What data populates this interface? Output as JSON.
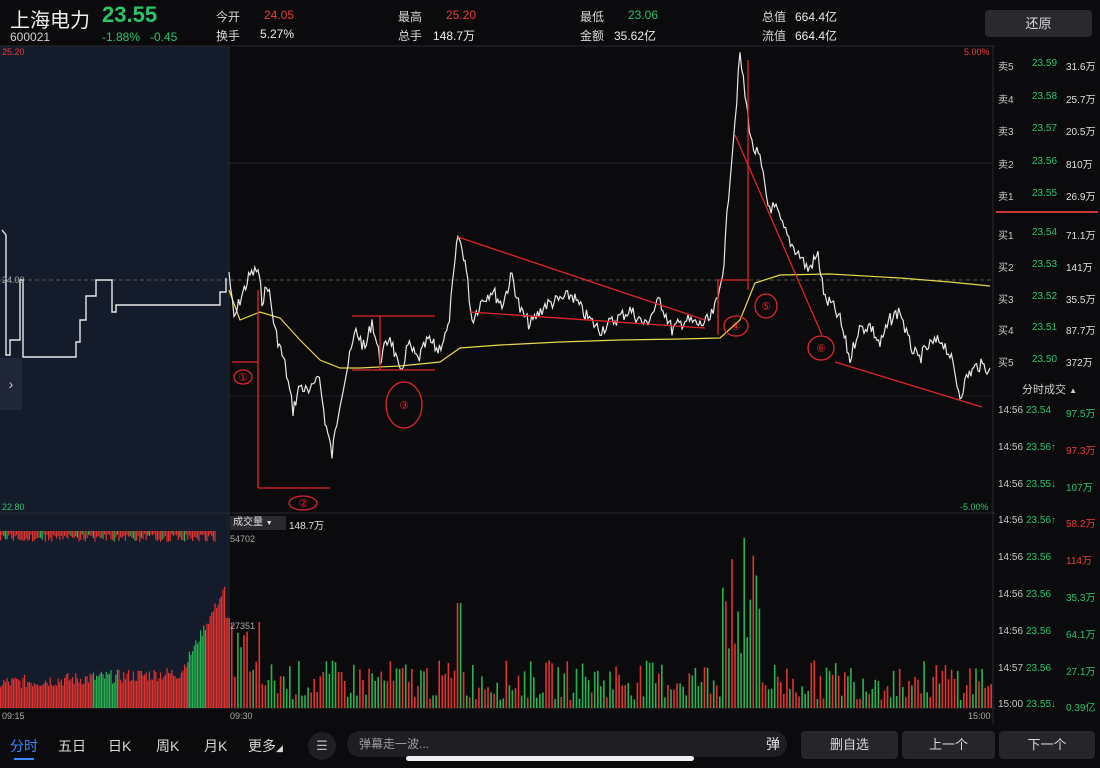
{
  "header": {
    "stock_name": "上海电力",
    "price": "23.55",
    "code": "600021",
    "change_pct": "-1.88%",
    "change_amt": "-0.45",
    "stats": [
      {
        "label": "今开",
        "value": "24.05",
        "color": "#f03c3c"
      },
      {
        "label": "换手",
        "value": "5.27%",
        "color": "#e0e0e0"
      },
      {
        "label": "最高",
        "value": "25.20",
        "color": "#f03c3c"
      },
      {
        "label": "总手",
        "value": "148.7万",
        "color": "#e0e0e0"
      },
      {
        "label": "最低",
        "value": "23.06",
        "color": "#2bc46a"
      },
      {
        "label": "金额",
        "value": "35.62亿",
        "color": "#e0e0e0"
      },
      {
        "label": "总值",
        "value": "664.4亿",
        "color": "#e0e0e0"
      },
      {
        "label": "流值",
        "value": "664.4亿",
        "color": "#e0e0e0"
      }
    ],
    "restore_label": "还原"
  },
  "chart": {
    "price_high": "25.20",
    "price_low": "22.80",
    "pct_high": "5.00%",
    "pct_low": "-5.00%",
    "ref_price": "24.00",
    "volume_label": "成交量",
    "volume_total": "148.7万",
    "volume_max": "54702",
    "volume_mid": "27351",
    "times": [
      "09:15",
      "09:30",
      "15:00"
    ],
    "annotations": [
      "①",
      "②",
      "③",
      "④",
      "⑤",
      "⑥"
    ]
  },
  "order_book": {
    "asks": [
      {
        "label": "卖5",
        "price": "23.59",
        "vol": "31.6万"
      },
      {
        "label": "卖4",
        "price": "23.58",
        "vol": "25.7万"
      },
      {
        "label": "卖3",
        "price": "23.57",
        "vol": "20.5万"
      },
      {
        "label": "卖2",
        "price": "23.56",
        "vol": "810万"
      },
      {
        "label": "卖1",
        "price": "23.55",
        "vol": "26.9万"
      }
    ],
    "bids": [
      {
        "label": "买1",
        "price": "23.54",
        "vol": "71.1万"
      },
      {
        "label": "买2",
        "price": "23.53",
        "vol": "141万"
      },
      {
        "label": "买3",
        "price": "23.52",
        "vol": "35.5万"
      },
      {
        "label": "买4",
        "price": "23.51",
        "vol": "87.7万"
      },
      {
        "label": "买5",
        "price": "23.50",
        "vol": "372万"
      }
    ],
    "ticks_title": "分时成交",
    "ticks": [
      {
        "time": "14:56",
        "price": "23.54",
        "vol": "97.5万",
        "vcolor": "#2bc46a"
      },
      {
        "time": "14:56",
        "price": "23.56↑",
        "vol": "97.3万",
        "vcolor": "#f03c3c"
      },
      {
        "time": "14:56",
        "price": "23.55↓",
        "vol": "107万",
        "vcolor": "#2bc46a"
      },
      {
        "time": "14:56",
        "price": "23.56↑",
        "vol": "58.2万",
        "vcolor": "#f03c3c"
      },
      {
        "time": "14:56",
        "price": "23.56",
        "vol": "114万",
        "vcolor": "#f03c3c"
      },
      {
        "time": "14:56",
        "price": "23.56",
        "vol": "35.3万",
        "vcolor": "#2bc46a"
      },
      {
        "time": "14:56",
        "price": "23.56",
        "vol": "64.1万",
        "vcolor": "#2bc46a"
      },
      {
        "time": "14:57",
        "price": "23.56",
        "vol": "27.1万",
        "vcolor": "#2bc46a"
      },
      {
        "time": "15:00",
        "price": "23.55↓",
        "vol": "0.39亿",
        "vcolor": "#2bc46a"
      }
    ]
  },
  "bottom": {
    "tabs": [
      "分时",
      "五日",
      "日K",
      "周K",
      "月K",
      "更多"
    ],
    "danmu_placeholder": "弹幕走一波...",
    "danmu_badge": "弹",
    "delete_fav": "删自选",
    "prev": "上一个",
    "next": "下一个"
  }
}
